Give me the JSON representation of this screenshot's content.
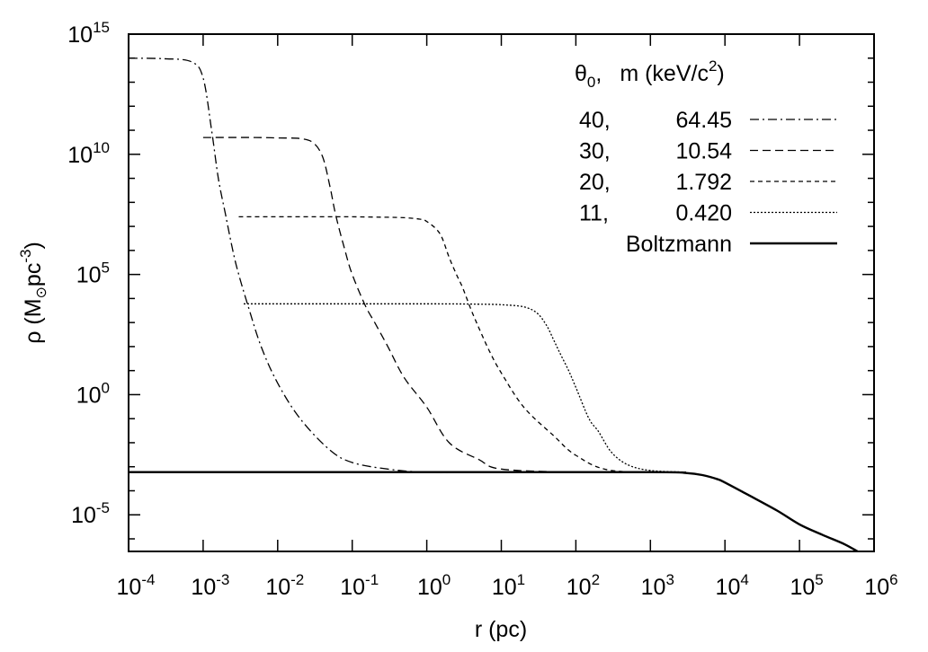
{
  "chart_data": {
    "type": "line",
    "xlabel": "r (pc)",
    "ylabel_parts": {
      "pre": "ρ (M",
      "sun": "⊙",
      "mid": "pc",
      "exp": "-3",
      "post": ")"
    },
    "xscale": "log",
    "yscale": "log",
    "xlim": [
      0.0001,
      1000000
    ],
    "ylim": [
      3e-07,
      1000000000000000
    ],
    "xticks": [
      {
        "base": "10",
        "exp": "-4"
      },
      {
        "base": "10",
        "exp": "-3"
      },
      {
        "base": "10",
        "exp": "-2"
      },
      {
        "base": "10",
        "exp": "-1"
      },
      {
        "base": "10",
        "exp": "0"
      },
      {
        "base": "10",
        "exp": "1"
      },
      {
        "base": "10",
        "exp": "2"
      },
      {
        "base": "10",
        "exp": "3"
      },
      {
        "base": "10",
        "exp": "4"
      },
      {
        "base": "10",
        "exp": "5"
      },
      {
        "base": "10",
        "exp": "6"
      }
    ],
    "yticks": [
      {
        "base": "10",
        "exp": "-5"
      },
      {
        "base": "10",
        "exp": "0"
      },
      {
        "base": "10",
        "exp": "5"
      },
      {
        "base": "10",
        "exp": "10"
      },
      {
        "base": "10",
        "exp": "15"
      }
    ],
    "legend": {
      "placement": "top-right",
      "header": {
        "theta": "θ",
        "theta_sub": "0",
        "sep": ",",
        "m": "m (keV/c",
        "m_exp": "2",
        "m_close": ")"
      }
    },
    "series": [
      {
        "theta": "40,",
        "m": "64.45",
        "style": "dash-dot",
        "x": [
          0.0001,
          0.0003,
          0.0007,
          0.001,
          0.0013,
          0.0016,
          0.002,
          0.0025,
          0.003,
          0.004,
          0.006,
          0.01,
          0.02,
          0.05,
          0.1,
          0.3,
          1,
          10,
          1000,
          3000
        ],
        "y": [
          100000000000000.0,
          95000000000000.0,
          70000000000000.0,
          15000000000000.0,
          100000000000.0,
          1000000000.0,
          30000000.0,
          1000000.0,
          100000.0,
          5000.0,
          100,
          3,
          0.1,
          0.005,
          0.0015,
          0.0008,
          0.0006,
          0.0006,
          0.0006,
          0.0006
        ]
      },
      {
        "theta": "30,",
        "m": "10.54",
        "style": "dashed",
        "x": [
          0.001,
          0.005,
          0.01,
          0.02,
          0.03,
          0.04,
          0.05,
          0.06,
          0.08,
          0.1,
          0.15,
          0.2,
          0.3,
          0.5,
          1,
          2,
          5,
          10,
          100,
          3000
        ],
        "y": [
          50000000000.0,
          50000000000.0,
          48000000000.0,
          45000000000.0,
          30000000000.0,
          8000000000.0,
          500000000.0,
          30000000.0,
          1000000.0,
          100000.0,
          5000.0,
          1000.0,
          100,
          5,
          0.3,
          0.01,
          0.002,
          0.0008,
          0.0006,
          0.0006
        ]
      },
      {
        "theta": "20,",
        "m": "1.792",
        "style": "dashed-fine",
        "x": [
          0.003,
          0.05,
          0.1,
          0.3,
          0.5,
          0.8,
          1,
          1.5,
          2,
          2.5,
          3,
          4,
          5,
          7,
          10,
          20,
          50,
          100,
          300,
          3000
        ],
        "y": [
          25000000.0,
          25000000.0,
          25000000.0,
          24000000.0,
          23000000.0,
          20000000.0,
          16000000.0,
          5000000.0,
          500000.0,
          100000.0,
          30000.0,
          3000.0,
          600,
          60,
          8,
          0.3,
          0.02,
          0.003,
          0.0007,
          0.0006
        ]
      },
      {
        "theta": "11,",
        "m": "0.420",
        "style": "dotted",
        "x": [
          0.0035,
          1,
          5,
          10,
          20,
          30,
          40,
          50,
          60,
          80,
          100,
          150,
          200,
          300,
          500,
          1000,
          3000
        ],
        "y": [
          6000.0,
          6000.0,
          5800.0,
          5500.0,
          4500.0,
          2500.0,
          800,
          200,
          60,
          10,
          2,
          0.1,
          0.03,
          0.004,
          0.0012,
          0.0007,
          0.0006
        ]
      },
      {
        "theta": "",
        "m": "Boltzmann",
        "style": "solid",
        "x": [
          0.0001,
          1,
          1000,
          3000,
          5000,
          8000,
          10000,
          20000,
          50000,
          100000,
          200000,
          400000,
          600000
        ],
        "y": [
          0.0006,
          0.0006,
          0.0006,
          0.00055,
          0.00045,
          0.0003,
          0.00022,
          7e-05,
          1.5e-05,
          4e-06,
          1.5e-06,
          6e-07,
          3e-07
        ]
      }
    ]
  }
}
